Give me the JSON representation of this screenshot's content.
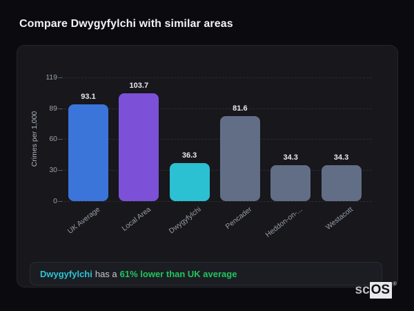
{
  "header": {
    "title": "Compare Dwygyfylchi with similar areas"
  },
  "chart_data": {
    "type": "bar",
    "title": "Compare Dwygyfylchi with similar areas",
    "categories": [
      "UK Average",
      "Local Area",
      "Dwygyfylchi",
      "Pencader",
      "Heddon-on-...",
      "Westacott"
    ],
    "values": [
      93.1,
      103.7,
      36.3,
      81.6,
      34.3,
      34.3
    ],
    "value_labels": [
      "93.1",
      "103.7",
      "36.3",
      "81.6",
      "34.3",
      "34.3"
    ],
    "bar_colors": [
      "#3b75da",
      "#7c51d8",
      "#2bc0d2",
      "#626e85",
      "#626e85",
      "#626e85"
    ],
    "xlabel": "",
    "ylabel": "Crimes per 1,000",
    "yticks": [
      119,
      89,
      60,
      30,
      0
    ],
    "ylim": [
      0,
      119
    ],
    "grid": "horizontal-dashed",
    "legend": "none"
  },
  "note": {
    "area_name": "Dwygyfylchi",
    "middle_text": "has a",
    "highlight_text": "61% lower than UK average",
    "area_color": "#2bc4d4",
    "highlight_color": "#22c55e"
  },
  "watermark": {
    "prefix": "sc",
    "suffix": "OS",
    "registered": "®"
  }
}
